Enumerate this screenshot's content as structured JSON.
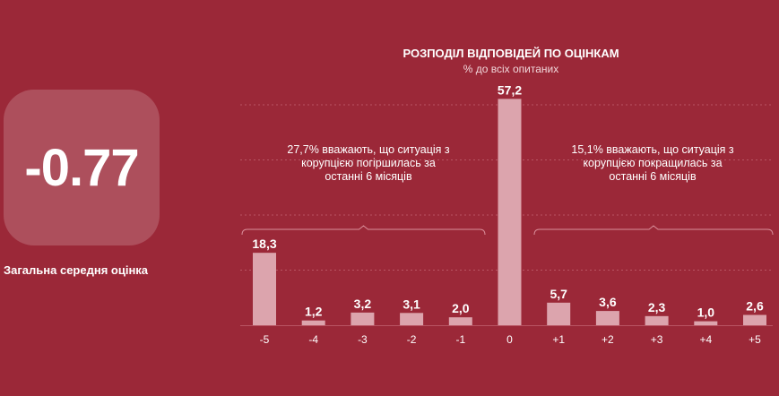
{
  "score": {
    "value": "-0.77",
    "label": "Загальна середня оцінка"
  },
  "annotations": {
    "left": "27,7% вважають, що ситуація з корупцією погіршилась за останні 6 місяців",
    "right": "15,1% вважають, що ситуація з корупцією покращилась за останні 6 місяців"
  },
  "colors": {
    "background": "#9b2838",
    "score_box": "#ad4f5c",
    "bar": "#dca4ad"
  },
  "chart_data": {
    "type": "bar",
    "title": "РОЗПОДІЛ ВІДПОВІДЕЙ ПО ОЦІНКАМ",
    "subtitle": "% до всіх опитаних",
    "categories": [
      "-5",
      "-4",
      "-3",
      "-2",
      "-1",
      "0",
      "+1",
      "+2",
      "+3",
      "+4",
      "+5"
    ],
    "values": [
      18.3,
      1.2,
      3.2,
      3.1,
      2.0,
      57.2,
      5.7,
      3.6,
      2.3,
      1.0,
      2.6
    ],
    "value_labels": [
      "18,3",
      "1,2",
      "3,2",
      "3,1",
      "2,0",
      "57,2",
      "5,7",
      "3,6",
      "2,3",
      "1,0",
      "2,6"
    ],
    "ylim": [
      0,
      60
    ],
    "grid": true,
    "xlabel": "",
    "ylabel": ""
  }
}
